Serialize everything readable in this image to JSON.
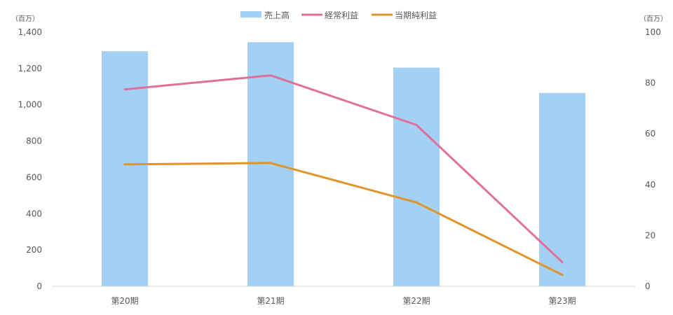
{
  "chart_data": {
    "type": "bar",
    "categories": [
      "第20期",
      "第21期",
      "第22期",
      "第23期"
    ],
    "series": [
      {
        "name": "売上高",
        "type": "bar",
        "axis": "left",
        "color": "#a4d0f3",
        "values": [
          1295,
          1345,
          1205,
          1065
        ]
      },
      {
        "name": "経常利益",
        "type": "line",
        "axis": "right",
        "color": "#e0709a",
        "values": [
          77.5,
          83,
          63.5,
          9.5
        ]
      },
      {
        "name": "当期純利益",
        "type": "line",
        "axis": "right",
        "color": "#e0952a",
        "values": [
          48,
          48.5,
          33,
          4.5
        ]
      }
    ],
    "y_left": {
      "unit": "（百万）",
      "ylim": [
        0,
        1400
      ],
      "ticks": [
        "0",
        "200",
        "400",
        "600",
        "800",
        "1,000",
        "1,200",
        "1,400"
      ]
    },
    "y_right": {
      "unit": "（百万）",
      "ylim": [
        0,
        100
      ],
      "ticks": [
        "0",
        "20",
        "40",
        "60",
        "80",
        "100"
      ]
    },
    "legend": "top-center",
    "grid": false
  }
}
